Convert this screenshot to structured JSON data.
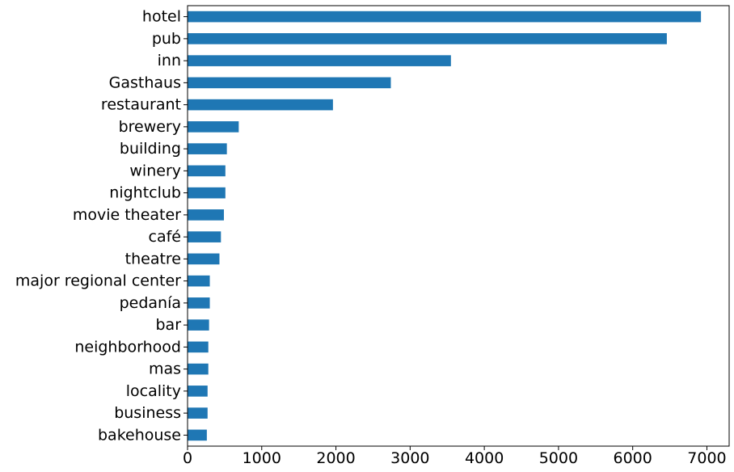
{
  "chart_data": {
    "type": "bar",
    "orientation": "horizontal",
    "categories": [
      "hotel",
      "pub",
      "inn",
      "Gasthaus",
      "restaurant",
      "brewery",
      "building",
      "winery",
      "nightclub",
      "movie theater",
      "café",
      "theatre",
      "major regional center",
      "pedanía",
      "bar",
      "neighborhood",
      "mas",
      "locality",
      "business",
      "bakehouse"
    ],
    "values": [
      6920,
      6460,
      3550,
      2740,
      1960,
      690,
      530,
      510,
      510,
      490,
      450,
      430,
      300,
      300,
      290,
      280,
      280,
      270,
      270,
      260
    ],
    "xlim": [
      0,
      7300
    ],
    "xticks": [
      "0",
      "1000",
      "2000",
      "3000",
      "4000",
      "5000",
      "6000",
      "7000"
    ],
    "bar_color": "#1f77b4",
    "title": "",
    "xlabel": "",
    "ylabel": "",
    "grid": false,
    "legend": "none"
  }
}
